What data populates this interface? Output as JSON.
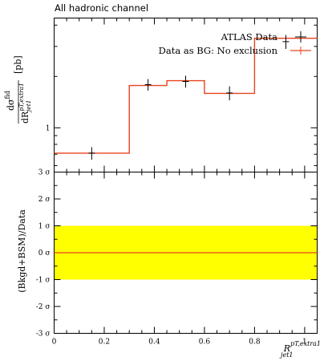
{
  "title": "All hadronic channel",
  "legend": {
    "data_label": "ATLAS Data",
    "bg_label": "Data as BG: No exclusion"
  },
  "colors": {
    "data": "#000000",
    "bg_line": "#e8431e",
    "band": "#ffff00",
    "ratio_line": "#e8431e"
  },
  "top_ylabel": {
    "main": "dσ",
    "main_sup": "fid",
    "den": "dR",
    "den_sub": "jet1",
    "den_sup": "pT,extra1",
    "unit": "[pb]"
  },
  "bottom_ylabel": "(Bkgd+BSM)/Data",
  "xlabel": {
    "main": "R",
    "sub": "jet1",
    "sup": "pT,extra1"
  },
  "chart_data": [
    {
      "type": "line",
      "panel": "main",
      "title": "All hadronic channel",
      "log_y": true,
      "ylim": [
        0.55,
        4.4
      ],
      "xlim": [
        0,
        1.05
      ],
      "yticks": [
        1
      ],
      "ytick_labels": [
        "1"
      ],
      "bin_edges": [
        0.0,
        0.3,
        0.45,
        0.6,
        0.8,
        1.05
      ],
      "series": [
        {
          "name": "ATLAS Data",
          "kind": "points",
          "x": [
            0.15,
            0.375,
            0.525,
            0.7,
            0.925
          ],
          "y": [
            0.71,
            1.79,
            1.87,
            1.6,
            3.2
          ],
          "yerr": [
            0.06,
            0.14,
            0.15,
            0.15,
            0.3
          ]
        },
        {
          "name": "Data as BG: No exclusion",
          "kind": "step",
          "y": [
            0.71,
            1.77,
            1.89,
            1.59,
            3.35
          ]
        }
      ]
    },
    {
      "type": "line",
      "panel": "ratio",
      "ylabel": "(Bkgd+BSM)/Data",
      "xlabel": "R_jet1^pT,extra1",
      "ylim": [
        -3,
        3
      ],
      "xlim": [
        0,
        1.05
      ],
      "yticks": [
        3,
        2,
        1,
        0,
        -1,
        -2,
        -3
      ],
      "ytick_labels": [
        "3 σ",
        "2 σ",
        "1 σ",
        "0 σ",
        "-1 σ",
        "-2 σ",
        "-3 σ"
      ],
      "xticks": [
        0,
        0.2,
        0.4,
        0.6,
        0.8,
        1
      ],
      "xtick_labels": [
        "0",
        "0.2",
        "0.4",
        "0.6",
        "0.8",
        "1"
      ],
      "band": [
        -1,
        1
      ],
      "ratio_line": 0
    }
  ]
}
